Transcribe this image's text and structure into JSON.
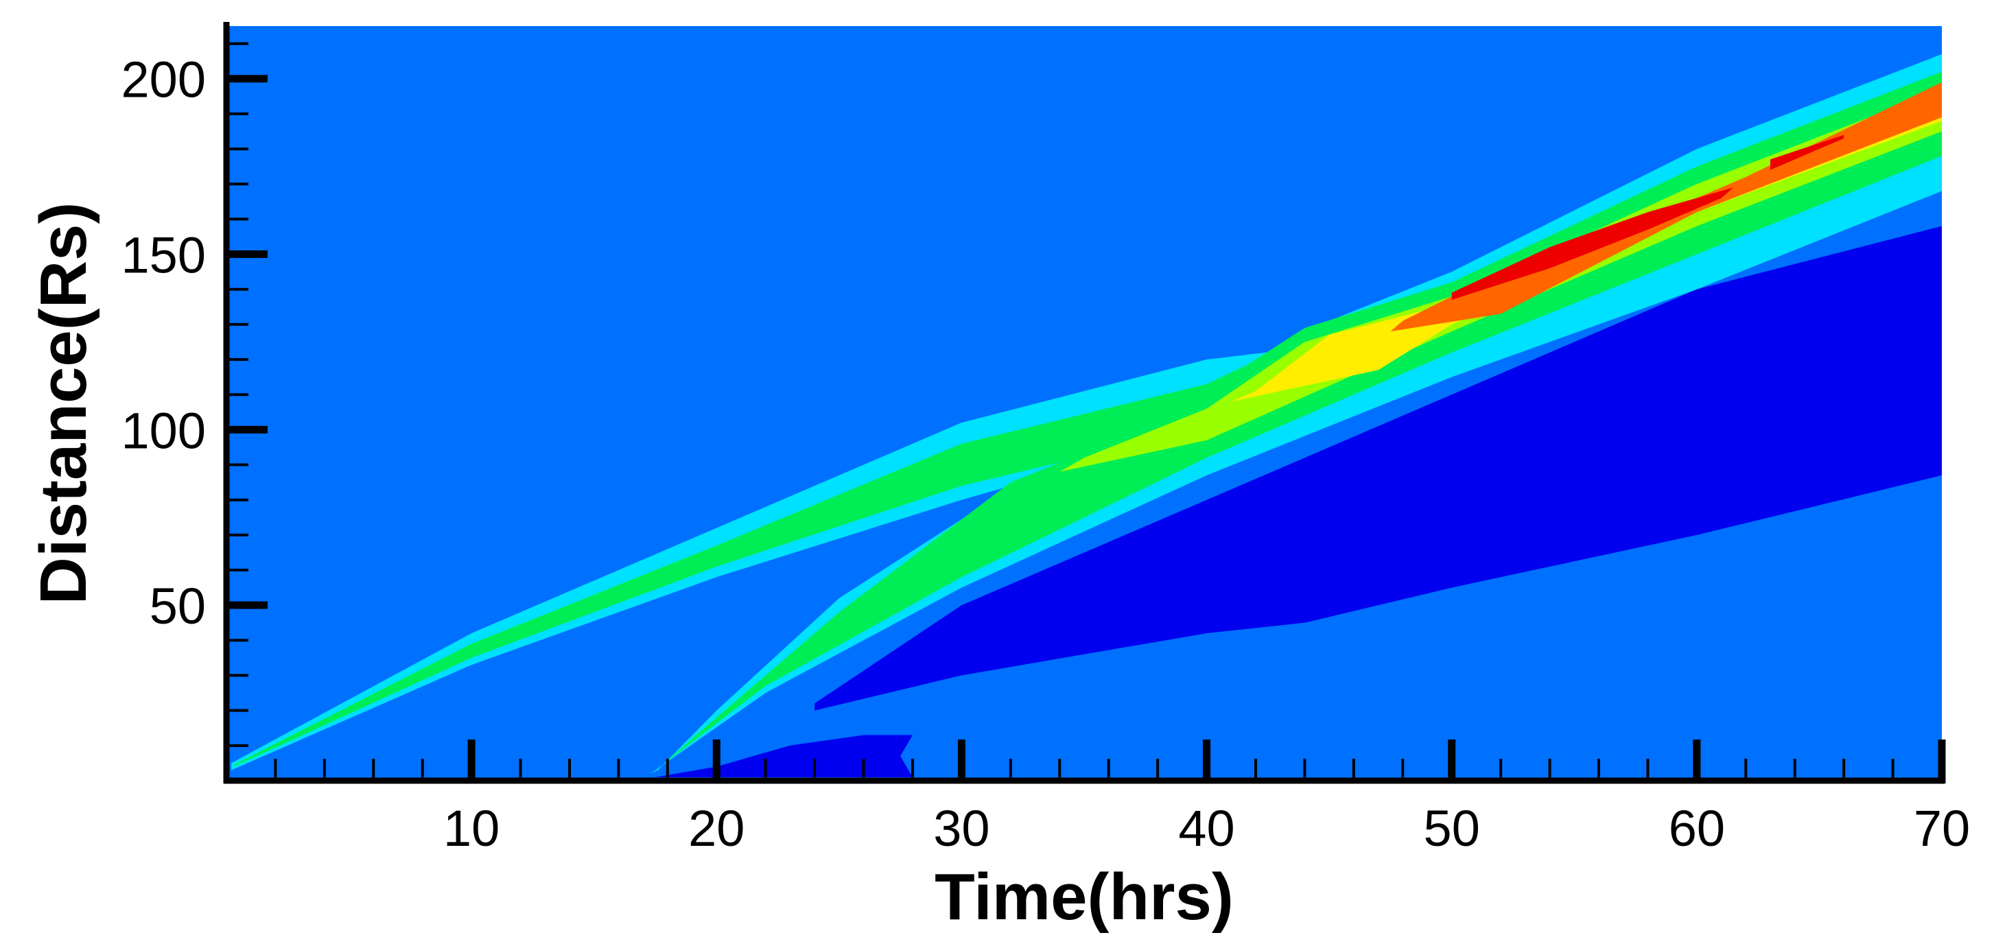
{
  "chart_data": {
    "type": "heatmap",
    "title": "",
    "xlabel": "Time(hrs)",
    "ylabel": "Distance(Rs)",
    "xlim": [
      0,
      70
    ],
    "ylim": [
      0,
      215
    ],
    "x_ticks": [
      10,
      20,
      30,
      40,
      50,
      60,
      70
    ],
    "y_ticks": [
      50,
      100,
      150,
      200
    ],
    "x_minor_step": 2,
    "y_minor_step": 10,
    "grid": false,
    "legend": "none",
    "background_color": "#0070ff",
    "colors": {
      "deep_blue": "#0000ee",
      "cyan": "#00e0ff",
      "green": "#00ee55",
      "yellow_green": "#99ff00",
      "yellow": "#ffee00",
      "orange": "#ff6600",
      "red": "#ee0000"
    },
    "regions": [
      {
        "name": "deep-blue-rarefaction",
        "color": "deep_blue",
        "points": [
          [
            24,
            20
          ],
          [
            30,
            30
          ],
          [
            40,
            42
          ],
          [
            44,
            45
          ],
          [
            50,
            55
          ],
          [
            60,
            70
          ],
          [
            70,
            87
          ],
          [
            70,
            158
          ],
          [
            60,
            140
          ],
          [
            50,
            110
          ],
          [
            40,
            80
          ],
          [
            30,
            50
          ],
          [
            24,
            22
          ]
        ]
      },
      {
        "name": "deep-blue-near-sun",
        "color": "deep_blue",
        "points": [
          [
            17.5,
            1
          ],
          [
            20,
            4
          ],
          [
            23,
            10
          ],
          [
            26,
            13
          ],
          [
            28,
            13
          ],
          [
            27.5,
            7
          ],
          [
            28,
            1
          ]
        ]
      },
      {
        "name": "shock1-cyan",
        "color": "cyan",
        "points": [
          [
            0.2,
            3
          ],
          [
            10,
            33
          ],
          [
            20,
            58
          ],
          [
            30,
            80
          ],
          [
            40,
            100
          ],
          [
            46,
            111
          ],
          [
            46,
            125
          ],
          [
            40,
            120
          ],
          [
            30,
            102
          ],
          [
            20,
            72
          ],
          [
            10,
            42
          ],
          [
            0.2,
            5
          ]
        ]
      },
      {
        "name": "shock2-cyan",
        "color": "cyan",
        "points": [
          [
            17.3,
            2
          ],
          [
            22,
            25
          ],
          [
            30,
            55
          ],
          [
            40,
            87
          ],
          [
            50,
            115
          ],
          [
            60,
            140
          ],
          [
            70,
            168
          ],
          [
            70,
            207
          ],
          [
            60,
            180
          ],
          [
            50,
            145
          ],
          [
            45,
            131
          ],
          [
            40,
            108
          ],
          [
            33,
            88
          ],
          [
            25,
            52
          ],
          [
            20,
            20
          ],
          [
            17.6,
            3
          ]
        ]
      },
      {
        "name": "shock1-green",
        "color": "green",
        "points": [
          [
            0.3,
            4
          ],
          [
            10,
            35
          ],
          [
            20,
            61
          ],
          [
            30,
            84
          ],
          [
            36,
            94
          ],
          [
            40,
            105
          ],
          [
            43,
            115
          ],
          [
            43,
            123
          ],
          [
            40,
            113
          ],
          [
            30,
            96
          ],
          [
            20,
            67
          ],
          [
            10,
            39
          ],
          [
            0.3,
            4.5
          ]
        ]
      },
      {
        "name": "shock2-green",
        "color": "green",
        "points": [
          [
            17.5,
            3
          ],
          [
            22,
            27
          ],
          [
            30,
            58
          ],
          [
            40,
            92
          ],
          [
            50,
            122
          ],
          [
            60,
            150
          ],
          [
            70,
            178
          ],
          [
            70,
            202
          ],
          [
            60,
            175
          ],
          [
            50,
            142
          ],
          [
            44,
            129
          ],
          [
            38,
            102
          ],
          [
            32,
            85
          ],
          [
            25,
            48
          ],
          [
            20,
            18
          ],
          [
            17.7,
            4
          ]
        ]
      },
      {
        "name": "yellow-green-band",
        "color": "yellow_green",
        "points": [
          [
            34,
            88
          ],
          [
            40,
            97
          ],
          [
            50,
            128
          ],
          [
            60,
            158
          ],
          [
            70,
            185
          ],
          [
            70,
            197
          ],
          [
            60,
            170
          ],
          [
            50,
            138
          ],
          [
            44,
            125
          ],
          [
            40,
            106
          ],
          [
            35,
            92
          ]
        ]
      },
      {
        "name": "yellow-band",
        "color": "yellow",
        "points": [
          [
            41,
            108
          ],
          [
            47,
            117
          ],
          [
            50,
            130
          ],
          [
            60,
            162
          ],
          [
            70,
            188
          ],
          [
            70,
            193
          ],
          [
            60,
            166
          ],
          [
            50,
            136
          ],
          [
            45,
            127
          ],
          [
            42,
            111
          ]
        ]
      },
      {
        "name": "orange-band",
        "color": "orange",
        "points": [
          [
            47.5,
            128
          ],
          [
            52,
            133
          ],
          [
            60,
            162
          ],
          [
            70,
            189
          ],
          [
            70,
            199
          ],
          [
            62,
            172
          ],
          [
            55,
            151
          ],
          [
            50,
            138
          ],
          [
            48,
            131
          ]
        ]
      },
      {
        "name": "red-core",
        "color": "red",
        "points": [
          [
            50,
            137
          ],
          [
            54,
            146
          ],
          [
            58,
            157
          ],
          [
            61,
            166
          ],
          [
            61.5,
            169
          ],
          [
            58,
            162
          ],
          [
            54,
            152
          ],
          [
            50,
            139
          ]
        ]
      },
      {
        "name": "red-streak",
        "color": "red",
        "points": [
          [
            63,
            174
          ],
          [
            66,
            183
          ],
          [
            66,
            184
          ],
          [
            63,
            177
          ]
        ]
      }
    ]
  }
}
